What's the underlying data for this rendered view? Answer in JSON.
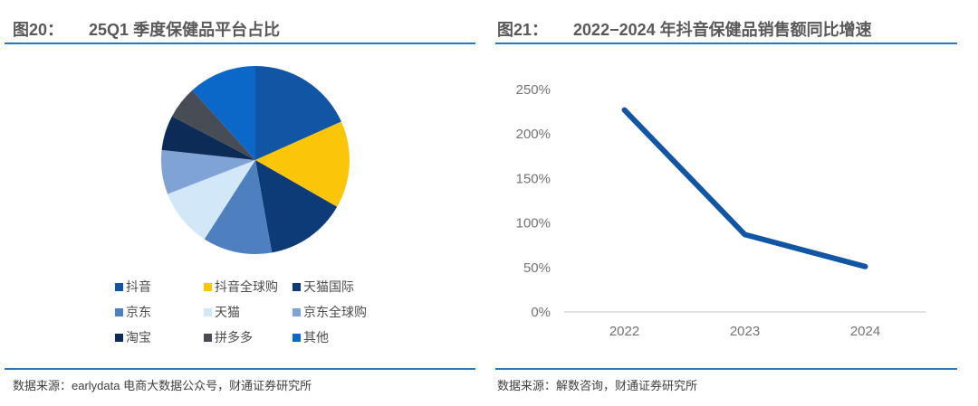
{
  "colors": {
    "accent_rule": "#2E75B6",
    "title_text": "#595959",
    "source_text": "#404040",
    "axis_text": "#737373",
    "axis_line": "#D9D9D9",
    "trend_line": "#1155A5"
  },
  "left_panel": {
    "figure_label": "图20：",
    "title": "25Q1 季度保健品平台占比",
    "source": "数据来源：earlydata 电商大数据公众号，财通证券研究所"
  },
  "right_panel": {
    "figure_label": "图21：",
    "title": "2022−2024 年抖音保健品销售额同比增速",
    "source": "数据来源：解数咨询，财通证券研究所"
  },
  "chart_data": [
    {
      "type": "pie",
      "title": "25Q1 季度保健品平台占比",
      "unit": "%",
      "legend_position": "bottom",
      "legend_columns": 3,
      "series": [
        {
          "name": "抖音",
          "value": 18.3,
          "color": "#1155A5"
        },
        {
          "name": "抖音全球购",
          "value": 15.0,
          "color": "#FCC608"
        },
        {
          "name": "天猫国际",
          "value": 13.9,
          "color": "#0D3B78"
        },
        {
          "name": "京东",
          "value": 11.9,
          "color": "#4E80C0"
        },
        {
          "name": "天猫",
          "value": 10.0,
          "color": "#D2E7F8"
        },
        {
          "name": "京东全球购",
          "value": 7.6,
          "color": "#7FA3D4"
        },
        {
          "name": "淘宝",
          "value": 6.0,
          "color": "#0C2B57"
        },
        {
          "name": "拼多多",
          "value": 5.6,
          "color": "#474C55"
        },
        {
          "name": "其他",
          "value": 11.7,
          "color": "#0C68C8"
        }
      ]
    },
    {
      "type": "line",
      "title": "2022−2024 年抖音保健品销售额同比增速",
      "categories": [
        "2022",
        "2023",
        "2024"
      ],
      "values": [
        227,
        87,
        51
      ],
      "unit": "%",
      "ylim": [
        0,
        250
      ],
      "ytick_step": 50,
      "yticks": [
        "250%",
        "200%",
        "150%",
        "100%",
        "50%",
        "0%"
      ],
      "grid": false,
      "legend": "none",
      "line_color": "#1155A5"
    }
  ]
}
